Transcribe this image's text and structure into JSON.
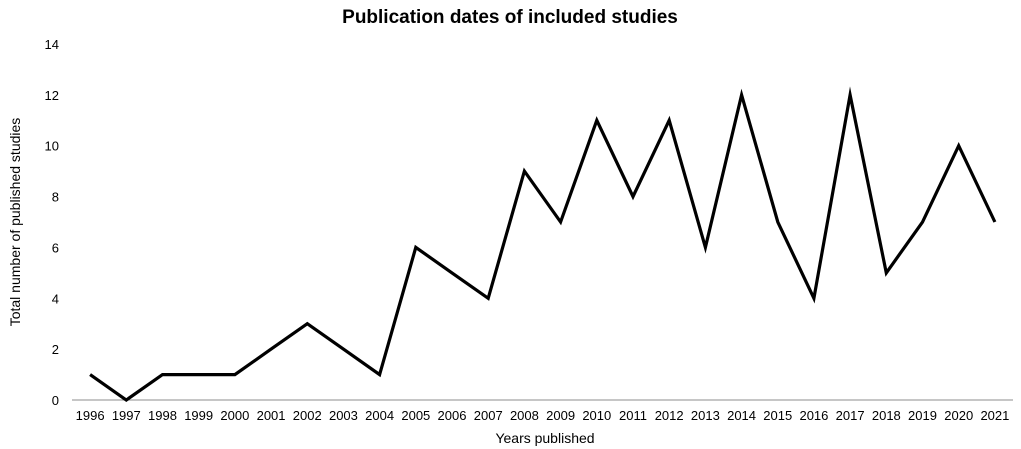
{
  "chart_data": {
    "type": "line",
    "title": "Publication dates of included studies",
    "xlabel": "Years published",
    "ylabel": "Total number of published studies",
    "categories": [
      "1996",
      "1997",
      "1998",
      "1999",
      "2000",
      "2001",
      "2002",
      "2003",
      "2004",
      "2005",
      "2006",
      "2007",
      "2008",
      "2009",
      "2010",
      "2011",
      "2012",
      "2013",
      "2014",
      "2015",
      "2016",
      "2017",
      "2018",
      "2019",
      "2020",
      "2021"
    ],
    "series": [
      {
        "values": [
          1,
          0,
          1,
          1,
          1,
          2,
          3,
          2,
          1,
          6,
          5,
          4,
          9,
          7,
          11,
          8,
          11,
          6,
          12,
          7,
          4,
          12,
          5,
          7,
          10,
          7
        ]
      }
    ],
    "ylim": [
      0,
      14
    ],
    "yticks": [
      0,
      2,
      4,
      6,
      8,
      10,
      12,
      14
    ],
    "grid": false,
    "legend": "none",
    "line_color": "#000000"
  }
}
